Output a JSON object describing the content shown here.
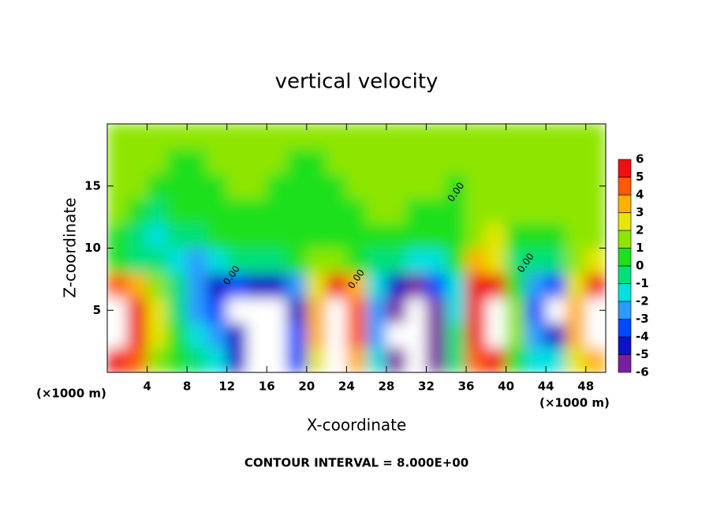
{
  "chart_data": {
    "type": "contour",
    "title": "vertical velocity",
    "x_label": "X-coordinate",
    "y_label": "Z-coordinate",
    "x_unit_left": "(×1000 m)",
    "x_unit_right": "(×1000 m)",
    "footer": "CONTOUR INTERVAL = 8.000E+00",
    "xlim": [
      0,
      50
    ],
    "ylim": [
      0,
      20
    ],
    "xticks": [
      4,
      8,
      12,
      16,
      20,
      24,
      28,
      32,
      36,
      40,
      44,
      48
    ],
    "yticks": [
      5,
      10,
      15
    ],
    "x": [
      1,
      3,
      5,
      7,
      9,
      11,
      13,
      15,
      17,
      19,
      21,
      23,
      25,
      27,
      29,
      31,
      33,
      35,
      37,
      39,
      41,
      43,
      45,
      47,
      49
    ],
    "z": [
      1,
      3,
      5,
      7,
      9,
      11,
      13,
      15,
      17,
      19
    ],
    "values": [
      [
        6,
        4,
        1,
        0,
        -1,
        -2,
        -5,
        -8,
        -8,
        -4,
        2,
        8,
        3,
        -2,
        -6,
        -8,
        -6,
        -1,
        4,
        5,
        0,
        -2,
        -2,
        2,
        3
      ],
      [
        8,
        5,
        2,
        0,
        -2,
        -3,
        -5,
        -8,
        -8,
        -4,
        3,
        8,
        4,
        -3,
        -7,
        -8,
        -6,
        -1,
        5,
        8,
        1,
        -3,
        -5,
        3,
        7
      ],
      [
        8,
        5,
        2,
        -1,
        -3,
        -4,
        -8,
        -7,
        -8,
        -5,
        3,
        8,
        4,
        -3,
        -6,
        -8,
        -6,
        -2,
        6,
        8,
        1,
        -4,
        -7,
        3,
        8
      ],
      [
        4,
        3,
        1,
        -1,
        -3,
        -5,
        -4,
        -5,
        -5,
        -3,
        2,
        5,
        3,
        -2,
        -5,
        -6,
        -4,
        -2,
        5,
        6,
        0,
        -3,
        -4,
        2,
        5
      ],
      [
        0,
        -1,
        -1,
        -2,
        -3,
        -2,
        -1,
        -1,
        -1,
        0,
        1,
        1,
        0,
        -1,
        -1,
        -2,
        -2,
        0,
        3,
        2,
        -1,
        -1,
        -1,
        1,
        2
      ],
      [
        0,
        -1,
        -2,
        -1,
        -1,
        0,
        0,
        0,
        0,
        0,
        0,
        0,
        0,
        0,
        0,
        0,
        0,
        0,
        1,
        2,
        0,
        0,
        0,
        1,
        1
      ],
      [
        1,
        0,
        -1,
        0,
        0,
        0,
        0,
        0,
        0,
        0,
        0,
        0,
        0,
        1,
        1,
        0,
        0,
        0,
        1,
        1,
        1,
        1,
        1,
        1,
        1
      ],
      [
        1,
        1,
        0,
        0,
        0,
        0,
        1,
        1,
        0,
        0,
        0,
        0,
        1,
        1,
        1,
        1,
        1,
        0,
        1,
        1,
        1,
        1,
        1,
        1,
        1
      ],
      [
        1,
        1,
        1,
        0,
        0,
        1,
        1,
        1,
        1,
        0,
        0,
        1,
        1,
        1,
        1,
        1,
        1,
        1,
        1,
        1,
        1,
        1,
        1,
        1,
        1
      ],
      [
        1,
        1,
        1,
        1,
        1,
        1,
        1,
        1,
        1,
        1,
        1,
        1,
        1,
        1,
        1,
        1,
        1,
        1,
        1,
        1,
        1,
        1,
        1,
        1,
        1
      ]
    ],
    "levels": [
      -6,
      -5,
      -4,
      -3,
      -2,
      -1,
      0,
      1,
      2,
      3,
      4,
      5,
      6
    ],
    "colors": [
      "#7b1fa2",
      "#1010c8",
      "#0048ff",
      "#2a9cff",
      "#00e0e0",
      "#00e07a",
      "#1ee01e",
      "#8ee600",
      "#e6e600",
      "#ffb000",
      "#ff5a00",
      "#f01010"
    ],
    "out_of_range_color": "#ffffff",
    "contour_labels": [
      {
        "text": "0.00",
        "x": 12.5,
        "z": 7.8
      },
      {
        "text": "0.00",
        "x": 25,
        "z": 7.5
      },
      {
        "text": "0.00",
        "x": 35,
        "z": 14.5
      },
      {
        "text": "0.00",
        "x": 42,
        "z": 8.8
      }
    ]
  }
}
